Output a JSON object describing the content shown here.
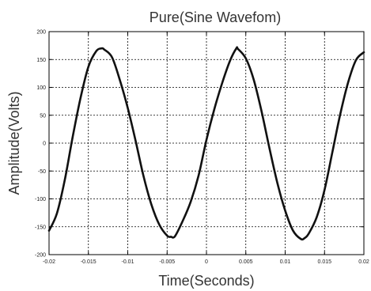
{
  "chart_data": {
    "type": "line",
    "title": "Pure(Sine Wavefom)",
    "xlabel": "Time(Seconds)",
    "ylabel": "Amplitude(Volts)",
    "xlim": [
      -0.02,
      0.02
    ],
    "ylim": [
      -200,
      200
    ],
    "grid": true,
    "x_ticks": [
      -0.02,
      -0.015,
      -0.01,
      -0.005,
      0,
      0.005,
      0.01,
      0.015,
      0.02
    ],
    "x_tick_labels": [
      "-0.02",
      "-0.015",
      "-0.01",
      "-0.005",
      "0",
      "0.005",
      "0.01",
      "0.015",
      "0.02"
    ],
    "y_ticks": [
      -200,
      -150,
      -100,
      -50,
      0,
      50,
      100,
      150,
      200
    ],
    "y_tick_labels": [
      "-200",
      "-150",
      "-100",
      "-50",
      "0",
      "50",
      "100",
      "150",
      "200"
    ],
    "series": [
      {
        "x": [
          -0.02,
          -0.019,
          -0.018,
          -0.017,
          -0.016,
          -0.015,
          -0.014,
          -0.0133,
          -0.013,
          -0.012,
          -0.011,
          -0.01,
          -0.009,
          -0.008,
          -0.007,
          -0.006,
          -0.005,
          -0.0045,
          -0.004,
          -0.003,
          -0.002,
          -0.001,
          0,
          0.001,
          0.002,
          0.003,
          0.0038,
          0.004,
          0.005,
          0.006,
          0.007,
          0.008,
          0.009,
          0.01,
          0.011,
          0.012,
          0.0125,
          0.013,
          0.014,
          0.015,
          0.016,
          0.017,
          0.018,
          0.019,
          0.02
        ],
        "y": [
          -157,
          -126,
          -66,
          11,
          81,
          137,
          165,
          170,
          168,
          154,
          113,
          63,
          4,
          -59,
          -110,
          -146,
          -166,
          -168,
          -167,
          -139,
          -105,
          -58,
          6,
          61,
          108,
          148,
          170,
          169,
          152,
          114,
          57,
          -9,
          -71,
          -121,
          -157,
          -172,
          -170,
          -162,
          -133,
          -84,
          -16,
          52,
          109,
          149,
          163
        ]
      }
    ]
  }
}
